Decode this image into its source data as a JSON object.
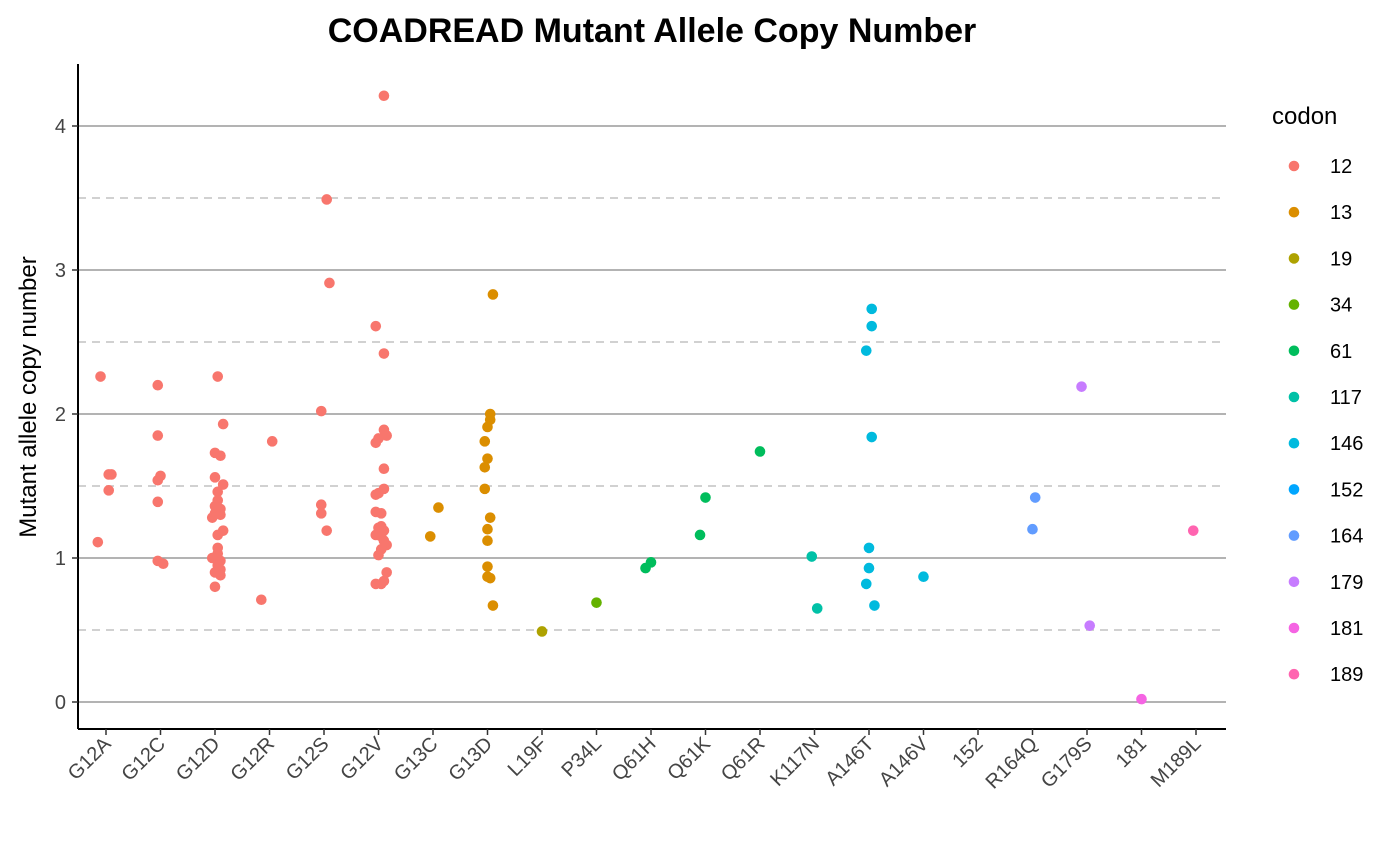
{
  "chart_data": {
    "type": "scatter",
    "title": "COADREAD Mutant Allele Copy Number",
    "xlabel": "",
    "ylabel": "Mutant allele copy number",
    "categories": [
      "G12A",
      "G12C",
      "G12D",
      "G12R",
      "G12S",
      "G12V",
      "G13C",
      "G13D",
      "L19F",
      "P34L",
      "Q61H",
      "Q61K",
      "Q61R",
      "K117N",
      "A146T",
      "A146V",
      "152",
      "R164Q",
      "G179S",
      "181",
      "M189L"
    ],
    "ylim": [
      -0.18,
      4.4
    ],
    "yticks": [
      0,
      1,
      2,
      3,
      4
    ],
    "grid": {
      "major": true,
      "minor_dashed": [
        0.5,
        1.5,
        2.5,
        3.5
      ]
    },
    "legend": {
      "title": "codon",
      "placement": "right",
      "entries": [
        {
          "label": "12",
          "color": "#F8766D"
        },
        {
          "label": "13",
          "color": "#DB8E00"
        },
        {
          "label": "19",
          "color": "#AEA200"
        },
        {
          "label": "34",
          "color": "#64B200"
        },
        {
          "label": "61",
          "color": "#00BD5C"
        },
        {
          "label": "117",
          "color": "#00C1A7"
        },
        {
          "label": "146",
          "color": "#00BADE"
        },
        {
          "label": "152",
          "color": "#00A6FF"
        },
        {
          "label": "164",
          "color": "#619CFF"
        },
        {
          "label": "179",
          "color": "#C77CFF"
        },
        {
          "label": "181",
          "color": "#F564E3"
        },
        {
          "label": "189",
          "color": "#FF64B0"
        }
      ]
    },
    "series": [
      {
        "codon": "12",
        "category": "G12A",
        "points": [
          [
            -0.1,
            2.26
          ],
          [
            0.05,
            1.58
          ],
          [
            0.1,
            1.58
          ],
          [
            0.05,
            1.47
          ],
          [
            -0.15,
            1.11
          ]
        ]
      },
      {
        "codon": "12",
        "category": "G12C",
        "points": [
          [
            -0.05,
            2.2
          ],
          [
            -0.05,
            1.85
          ],
          [
            0.0,
            1.57
          ],
          [
            -0.05,
            1.54
          ],
          [
            -0.05,
            1.39
          ],
          [
            -0.05,
            0.98
          ],
          [
            0.05,
            0.96
          ]
        ]
      },
      {
        "codon": "12",
        "category": "G12D",
        "points": [
          [
            0.05,
            2.26
          ],
          [
            0.15,
            1.93
          ],
          [
            0.0,
            1.73
          ],
          [
            0.1,
            1.71
          ],
          [
            0.0,
            1.56
          ],
          [
            0.15,
            1.51
          ],
          [
            0.05,
            1.46
          ],
          [
            0.05,
            1.4
          ],
          [
            0.0,
            1.36
          ],
          [
            0.1,
            1.34
          ],
          [
            0.0,
            1.31
          ],
          [
            0.1,
            1.3
          ],
          [
            -0.05,
            1.28
          ],
          [
            0.15,
            1.19
          ],
          [
            0.05,
            1.16
          ],
          [
            0.05,
            1.07
          ],
          [
            0.05,
            1.03
          ],
          [
            -0.05,
            1.0
          ],
          [
            0.1,
            0.98
          ],
          [
            0.05,
            0.95
          ],
          [
            0.1,
            0.92
          ],
          [
            0.0,
            0.9
          ],
          [
            0.1,
            0.88
          ],
          [
            0.0,
            0.8
          ]
        ]
      },
      {
        "codon": "12",
        "category": "G12R",
        "points": [
          [
            0.05,
            1.81
          ],
          [
            -0.15,
            0.71
          ]
        ]
      },
      {
        "codon": "12",
        "category": "G12S",
        "points": [
          [
            0.05,
            3.49
          ],
          [
            0.1,
            2.91
          ],
          [
            -0.05,
            2.02
          ],
          [
            -0.05,
            1.37
          ],
          [
            -0.05,
            1.31
          ],
          [
            0.05,
            1.19
          ]
        ]
      },
      {
        "codon": "12",
        "category": "G12V",
        "points": [
          [
            0.1,
            4.21
          ],
          [
            -0.05,
            2.61
          ],
          [
            0.1,
            2.42
          ],
          [
            0.1,
            1.89
          ],
          [
            0.15,
            1.85
          ],
          [
            0.0,
            1.83
          ],
          [
            -0.05,
            1.8
          ],
          [
            0.1,
            1.62
          ],
          [
            0.1,
            1.48
          ],
          [
            0.0,
            1.45
          ],
          [
            -0.05,
            1.44
          ],
          [
            -0.05,
            1.32
          ],
          [
            0.05,
            1.31
          ],
          [
            0.05,
            1.22
          ],
          [
            0.0,
            1.21
          ],
          [
            0.1,
            1.19
          ],
          [
            -0.05,
            1.16
          ],
          [
            0.05,
            1.15
          ],
          [
            0.1,
            1.12
          ],
          [
            0.15,
            1.09
          ],
          [
            0.05,
            1.06
          ],
          [
            0.0,
            1.02
          ],
          [
            0.15,
            0.9
          ],
          [
            0.1,
            0.84
          ],
          [
            -0.05,
            0.82
          ],
          [
            0.05,
            0.82
          ]
        ]
      },
      {
        "codon": "13",
        "category": "G13C",
        "points": [
          [
            0.1,
            1.35
          ],
          [
            -0.05,
            1.15
          ]
        ]
      },
      {
        "codon": "13",
        "category": "G13D",
        "points": [
          [
            0.1,
            2.83
          ],
          [
            0.05,
            2.0
          ],
          [
            0.05,
            1.96
          ],
          [
            0.0,
            1.91
          ],
          [
            -0.05,
            1.81
          ],
          [
            0.0,
            1.69
          ],
          [
            -0.05,
            1.63
          ],
          [
            -0.05,
            1.48
          ],
          [
            0.05,
            1.28
          ],
          [
            0.0,
            1.2
          ],
          [
            0.0,
            1.12
          ],
          [
            0.0,
            0.94
          ],
          [
            0.0,
            0.87
          ],
          [
            0.05,
            0.86
          ],
          [
            0.1,
            0.67
          ]
        ]
      },
      {
        "codon": "19",
        "category": "L19F",
        "points": [
          [
            0.0,
            0.49
          ]
        ]
      },
      {
        "codon": "34",
        "category": "P34L",
        "points": [
          [
            0.0,
            0.69
          ]
        ]
      },
      {
        "codon": "61",
        "category": "Q61H",
        "points": [
          [
            -0.1,
            0.93
          ],
          [
            0.0,
            0.97
          ]
        ]
      },
      {
        "codon": "61",
        "category": "Q61K",
        "points": [
          [
            0.0,
            1.42
          ],
          [
            -0.1,
            1.16
          ]
        ]
      },
      {
        "codon": "61",
        "category": "Q61R",
        "points": [
          [
            0.0,
            1.74
          ]
        ]
      },
      {
        "codon": "117",
        "category": "K117N",
        "points": [
          [
            -0.05,
            1.01
          ],
          [
            0.05,
            0.65
          ]
        ]
      },
      {
        "codon": "146",
        "category": "A146T",
        "points": [
          [
            0.05,
            2.73
          ],
          [
            0.05,
            2.61
          ],
          [
            -0.05,
            2.44
          ],
          [
            0.05,
            1.84
          ],
          [
            0.0,
            1.07
          ],
          [
            0.0,
            0.93
          ],
          [
            -0.05,
            0.82
          ],
          [
            0.1,
            0.67
          ]
        ]
      },
      {
        "codon": "146",
        "category": "A146V",
        "points": [
          [
            0.0,
            0.87
          ]
        ]
      },
      {
        "codon": "164",
        "category": "R164Q",
        "points": [
          [
            0.05,
            1.42
          ],
          [
            0.0,
            1.2
          ]
        ]
      },
      {
        "codon": "179",
        "category": "G179S",
        "points": [
          [
            -0.1,
            2.19
          ],
          [
            0.05,
            0.53
          ]
        ]
      },
      {
        "codon": "181",
        "category": "181",
        "points": [
          [
            0.0,
            0.02
          ]
        ]
      },
      {
        "codon": "189",
        "category": "M189L",
        "points": [
          [
            -0.05,
            1.19
          ]
        ]
      }
    ]
  }
}
